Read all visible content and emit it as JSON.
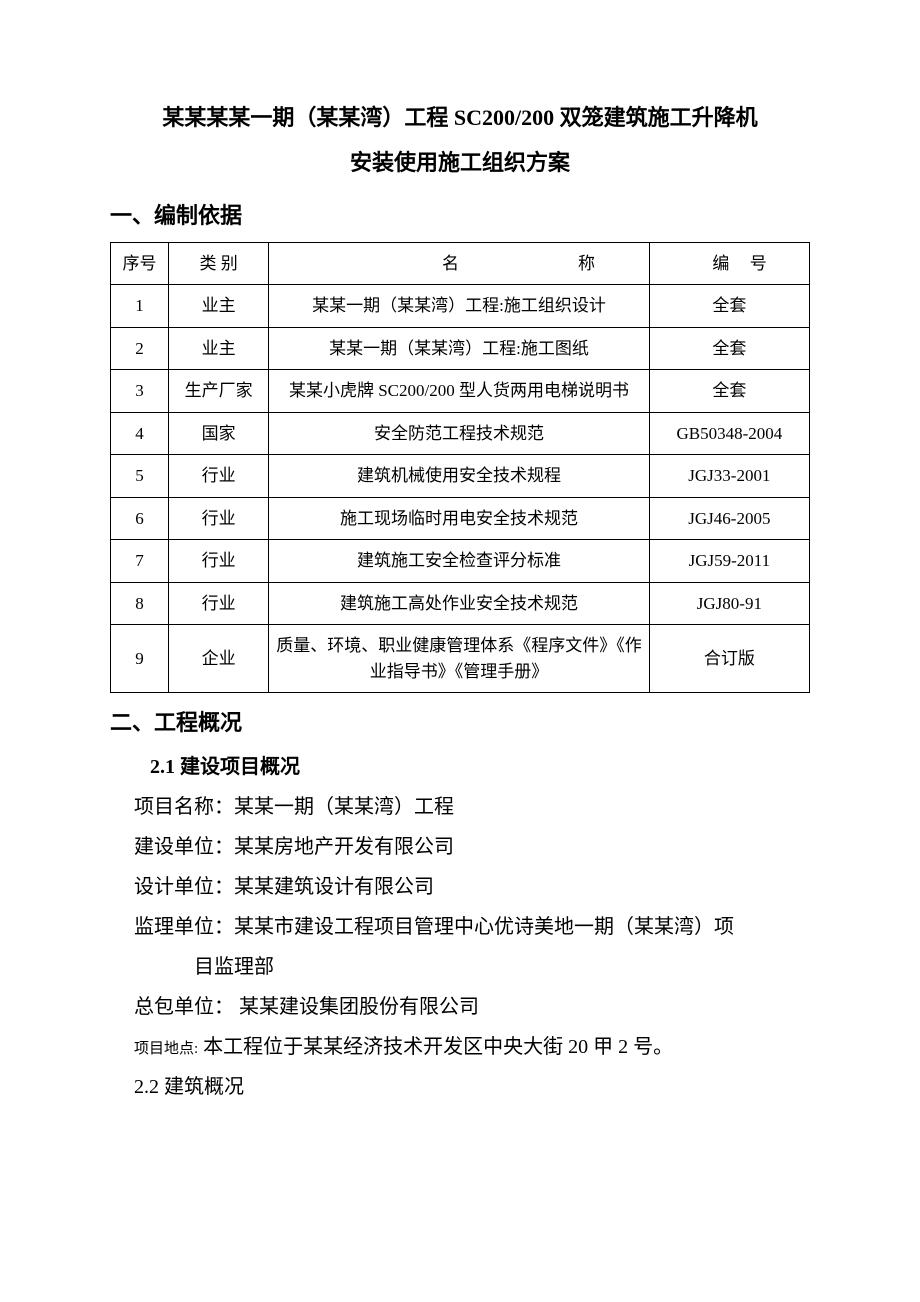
{
  "title": {
    "line1": "某某某某一期（某某湾）工程 SC200/200 双笼建筑施工升降机",
    "line2": "安装使用施工组织方案"
  },
  "section1": {
    "heading": "一、编制依据",
    "table": {
      "headers": {
        "seq": "序号",
        "category": "类 别",
        "name": "名",
        "name2": "称",
        "code": "编",
        "code2": "号"
      },
      "rows": [
        {
          "seq": "1",
          "cat": "业主",
          "name": "某某一期（某某湾）工程:施工组织设计",
          "code": "全套"
        },
        {
          "seq": "2",
          "cat": "业主",
          "name": "某某一期（某某湾）工程:施工图纸",
          "code": "全套"
        },
        {
          "seq": "3",
          "cat": "生产厂家",
          "name": "某某小虎牌 SC200/200 型人货两用电梯说明书",
          "code": "全套"
        },
        {
          "seq": "4",
          "cat": "国家",
          "name": "安全防范工程技术规范",
          "code": "GB50348-2004"
        },
        {
          "seq": "5",
          "cat": "行业",
          "name": "建筑机械使用安全技术规程",
          "code": "JGJ33-2001"
        },
        {
          "seq": "6",
          "cat": "行业",
          "name": "施工现场临时用电安全技术规范",
          "code": "JGJ46-2005"
        },
        {
          "seq": "7",
          "cat": "行业",
          "name": "建筑施工安全检查评分标准",
          "code": "JGJ59-2011"
        },
        {
          "seq": "8",
          "cat": "行业",
          "name": "建筑施工高处作业安全技术规范",
          "code": "JGJ80-91"
        },
        {
          "seq": "9",
          "cat": "企业",
          "name": "质量、环境、职业健康管理体系《程序文件》《作业指导书》《管理手册》",
          "code": "合订版"
        }
      ]
    }
  },
  "section2": {
    "heading": "二、工程概况",
    "sub21": {
      "heading": "2.1  建设项目概况",
      "lines": {
        "project_name": "项目名称：某某一期（某某湾）工程",
        "build_unit": "建设单位：某某房地产开发有限公司",
        "design_unit": "设计单位：某某建筑设计有限公司",
        "supervise_unit_l1": "监理单位：某某市建设工程项目管理中心优诗美地一期（某某湾）项",
        "supervise_unit_l2": "目监理部",
        "general_contract": "总包单位：  某某建设集团股份有限公司",
        "location_label": "项目地点:",
        "location_value": " 本工程位于某某经济技术开发区中央大街 20 甲 2 号。"
      }
    },
    "sub22_heading": "2.2 建筑概况"
  },
  "style": {
    "background_color": "#ffffff",
    "text_color": "#000000",
    "border_color": "#000000",
    "title_fontsize": 22,
    "heading_fontsize": 22,
    "body_fontsize": 20,
    "table_fontsize": 17,
    "small_label_fontsize": 15,
    "font_family": "SimSun"
  }
}
